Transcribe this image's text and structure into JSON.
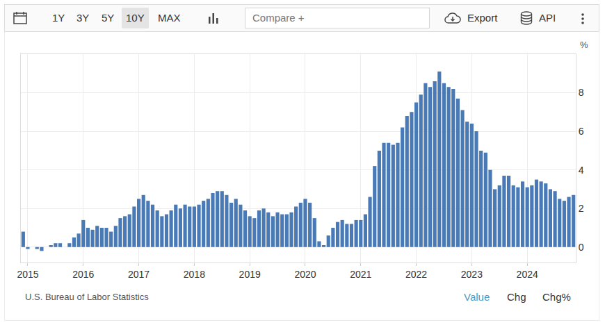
{
  "toolbar": {
    "ranges": [
      "1Y",
      "3Y",
      "5Y",
      "10Y",
      "MAX"
    ],
    "selected": "10Y",
    "compare": "Compare +",
    "export": "Export",
    "api": "API"
  },
  "chart_data": {
    "type": "bar",
    "ylabel": "%",
    "categories": [
      null,
      "2015",
      null,
      null,
      null,
      null,
      null,
      null,
      null,
      null,
      null,
      null,
      null,
      "2016",
      null,
      null,
      null,
      null,
      null,
      null,
      null,
      null,
      null,
      null,
      null,
      "2017",
      null,
      null,
      null,
      null,
      null,
      null,
      null,
      null,
      null,
      null,
      null,
      "2018",
      null,
      null,
      null,
      null,
      null,
      null,
      null,
      null,
      null,
      null,
      null,
      "2019",
      null,
      null,
      null,
      null,
      null,
      null,
      null,
      null,
      null,
      null,
      null,
      "2020",
      null,
      null,
      null,
      null,
      null,
      null,
      null,
      null,
      null,
      null,
      null,
      "2021",
      null,
      null,
      null,
      null,
      null,
      null,
      null,
      null,
      null,
      null,
      null,
      "2022",
      null,
      null,
      null,
      null,
      null,
      null,
      null,
      null,
      null,
      null,
      null,
      "2023",
      null,
      null,
      null,
      null,
      null,
      null,
      null,
      null,
      null,
      null,
      null,
      "2024",
      null,
      null,
      null,
      null,
      null,
      null,
      null,
      null,
      null,
      null
    ],
    "values": [
      0.8,
      -0.1,
      0.0,
      -0.1,
      -0.2,
      0.0,
      0.1,
      0.2,
      0.2,
      0.0,
      0.2,
      0.5,
      0.7,
      1.4,
      1.0,
      0.9,
      1.1,
      1.0,
      1.0,
      0.8,
      1.1,
      1.5,
      1.6,
      1.7,
      2.1,
      2.5,
      2.7,
      2.4,
      2.2,
      1.9,
      1.6,
      1.7,
      1.9,
      2.2,
      2.0,
      2.2,
      2.1,
      2.1,
      2.2,
      2.4,
      2.5,
      2.8,
      2.9,
      2.9,
      2.7,
      2.3,
      2.5,
      2.2,
      1.9,
      1.6,
      1.5,
      1.9,
      2.0,
      1.8,
      1.6,
      1.8,
      1.7,
      1.7,
      1.8,
      2.1,
      2.3,
      2.5,
      2.3,
      1.5,
      0.3,
      0.1,
      0.6,
      1.0,
      1.3,
      1.4,
      1.2,
      1.2,
      1.4,
      1.4,
      1.7,
      2.6,
      4.2,
      5.0,
      5.4,
      5.4,
      5.3,
      5.4,
      6.2,
      6.8,
      7.0,
      7.5,
      7.9,
      8.5,
      8.3,
      8.6,
      9.1,
      8.5,
      8.3,
      8.2,
      7.7,
      7.1,
      6.5,
      6.4,
      6.0,
      5.0,
      4.9,
      4.0,
      3.0,
      3.2,
      3.7,
      3.7,
      3.2,
      3.1,
      3.4,
      3.1,
      3.2,
      3.5,
      3.4,
      3.3,
      3.0,
      2.9,
      2.5,
      2.4,
      2.6,
      2.7
    ],
    "color": "#4a7ab5",
    "ylim": [
      -0.8,
      10
    ],
    "yticks": [
      0,
      2,
      4,
      6,
      8
    ],
    "grid": true
  },
  "source": "U.S. Bureau of Labor Statistics",
  "views": [
    "Value",
    "Chg",
    "Chg%"
  ],
  "selected_view": "Value"
}
